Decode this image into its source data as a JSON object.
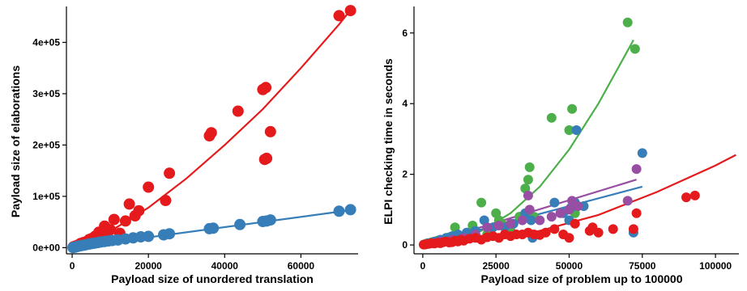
{
  "chart_data": [
    {
      "type": "scatter",
      "title": "",
      "xlabel": "Payload size of unordered translation",
      "ylabel": "Payload size of elaborations",
      "xlim": [
        -1500,
        75000
      ],
      "ylim": [
        -12000,
        470000
      ],
      "grid": false,
      "xticks": [
        0,
        20000,
        40000,
        60000
      ],
      "xtick_labels": [
        "0",
        "20000",
        "40000",
        "60000"
      ],
      "yticks": [
        0,
        100000,
        200000,
        300000,
        400000
      ],
      "ytick_labels": [
        "0e+00",
        "1e+05",
        "2e+05",
        "3e+05",
        "4e+05"
      ],
      "series": [
        {
          "color": "#e41a1c",
          "points": [
            [
              300,
              1500
            ],
            [
              800,
              3000
            ],
            [
              1500,
              5000
            ],
            [
              2200,
              8000
            ],
            [
              3000,
              10000
            ],
            [
              3800,
              12000
            ],
            [
              4500,
              16000
            ],
            [
              5200,
              18000
            ],
            [
              6000,
              22000
            ],
            [
              7000,
              30000
            ],
            [
              7800,
              25000
            ],
            [
              8500,
              42000
            ],
            [
              9200,
              20000
            ],
            [
              10000,
              35000
            ],
            [
              11000,
              55000
            ],
            [
              12500,
              28000
            ],
            [
              14000,
              52000
            ],
            [
              15000,
              85000
            ],
            [
              16500,
              62000
            ],
            [
              17500,
              72000
            ],
            [
              20000,
              118000
            ],
            [
              24500,
              92000
            ],
            [
              25500,
              145000
            ],
            [
              36000,
              218000
            ],
            [
              36500,
              224000
            ],
            [
              43500,
              266000
            ],
            [
              50000,
              308000
            ],
            [
              50800,
              312000
            ],
            [
              50500,
              172000
            ],
            [
              51000,
              174000
            ],
            [
              52000,
              226000
            ],
            [
              70000,
              452000
            ],
            [
              73000,
              462000
            ]
          ],
          "fit": [
            [
              0,
              0
            ],
            [
              10000,
              32000
            ],
            [
              20000,
              78000
            ],
            [
              30000,
              135000
            ],
            [
              40000,
              200000
            ],
            [
              50000,
              270000
            ],
            [
              60000,
              350000
            ],
            [
              70000,
              435000
            ],
            [
              73000,
              463000
            ]
          ]
        },
        {
          "color": "#377eb8",
          "points": [
            [
              200,
              300
            ],
            [
              600,
              800
            ],
            [
              1000,
              1500
            ],
            [
              1500,
              2500
            ],
            [
              2000,
              3500
            ],
            [
              2600,
              4200
            ],
            [
              3200,
              5000
            ],
            [
              3800,
              6000
            ],
            [
              4500,
              7000
            ],
            [
              5200,
              8000
            ],
            [
              6000,
              9000
            ],
            [
              6800,
              10000
            ],
            [
              7500,
              11000
            ],
            [
              8500,
              12000
            ],
            [
              9500,
              13000
            ],
            [
              10500,
              14000
            ],
            [
              12000,
              15000
            ],
            [
              14000,
              17000
            ],
            [
              16000,
              19000
            ],
            [
              18000,
              21000
            ],
            [
              20000,
              22000
            ],
            [
              24000,
              25000
            ],
            [
              25500,
              27000
            ],
            [
              36000,
              37000
            ],
            [
              37000,
              38000
            ],
            [
              44000,
              45000
            ],
            [
              50000,
              51000
            ],
            [
              51000,
              52000
            ],
            [
              52000,
              54000
            ],
            [
              70000,
              71000
            ],
            [
              73000,
              74000
            ]
          ],
          "fit": [
            [
              0,
              0
            ],
            [
              73000,
              73000
            ]
          ]
        }
      ]
    },
    {
      "type": "scatter",
      "title": "",
      "xlabel": "Payload size of problem up to 100000",
      "ylabel": "ELPI checking time in seconds",
      "xlim": [
        -3000,
        108000
      ],
      "ylim": [
        -0.25,
        6.75
      ],
      "grid": false,
      "xticks": [
        0,
        25000,
        50000,
        75000,
        100000
      ],
      "xtick_labels": [
        "0",
        "25000",
        "50000",
        "75000",
        "100000"
      ],
      "yticks": [
        0,
        2,
        4,
        6
      ],
      "ytick_labels": [
        "0",
        "2",
        "4",
        "6"
      ],
      "series": [
        {
          "color": "#4daf4a",
          "points": [
            [
              500,
              0.02
            ],
            [
              1500,
              0.05
            ],
            [
              3000,
              0.08
            ],
            [
              5000,
              0.12
            ],
            [
              7000,
              0.15
            ],
            [
              9000,
              0.22
            ],
            [
              11000,
              0.5
            ],
            [
              13000,
              0.25
            ],
            [
              15000,
              0.3
            ],
            [
              17000,
              0.55
            ],
            [
              20000,
              1.2
            ],
            [
              22000,
              0.3
            ],
            [
              25000,
              0.9
            ],
            [
              26000,
              0.7
            ],
            [
              27000,
              0.6
            ],
            [
              30000,
              0.4
            ],
            [
              33000,
              0.8
            ],
            [
              35000,
              1.6
            ],
            [
              36000,
              1.85
            ],
            [
              36500,
              2.2
            ],
            [
              38000,
              0.8
            ],
            [
              44000,
              3.6
            ],
            [
              50000,
              3.25
            ],
            [
              51000,
              3.85
            ],
            [
              52000,
              0.9
            ],
            [
              70000,
              6.3
            ],
            [
              72500,
              5.55
            ]
          ],
          "fit": [
            [
              0,
              0.0
            ],
            [
              10000,
              0.15
            ],
            [
              20000,
              0.4
            ],
            [
              30000,
              0.9
            ],
            [
              40000,
              1.65
            ],
            [
              50000,
              2.7
            ],
            [
              60000,
              4.0
            ],
            [
              72000,
              5.8
            ]
          ]
        },
        {
          "color": "#377eb8",
          "points": [
            [
              500,
              0.01
            ],
            [
              2000,
              0.05
            ],
            [
              4000,
              0.1
            ],
            [
              6000,
              0.15
            ],
            [
              8000,
              0.2
            ],
            [
              10000,
              0.25
            ],
            [
              12000,
              0.3
            ],
            [
              15000,
              0.35
            ],
            [
              18000,
              0.4
            ],
            [
              21000,
              0.7
            ],
            [
              24000,
              0.5
            ],
            [
              28000,
              0.5
            ],
            [
              31000,
              0.6
            ],
            [
              35000,
              0.9
            ],
            [
              37000,
              0.7
            ],
            [
              37500,
              0.2
            ],
            [
              45000,
              1.2
            ],
            [
              48000,
              0.9
            ],
            [
              50000,
              0.7
            ],
            [
              50500,
              1.05
            ],
            [
              52000,
              1.2
            ],
            [
              52500,
              3.25
            ],
            [
              55000,
              1.1
            ],
            [
              72000,
              0.35
            ],
            [
              75000,
              2.6
            ]
          ],
          "fit": [
            [
              0,
              0.0
            ],
            [
              75000,
              1.65
            ]
          ]
        },
        {
          "color": "#984ea3",
          "points": [
            [
              1000,
              0.02
            ],
            [
              3000,
              0.05
            ],
            [
              6000,
              0.1
            ],
            [
              10000,
              0.15
            ],
            [
              14000,
              0.2
            ],
            [
              18000,
              0.3
            ],
            [
              22000,
              0.5
            ],
            [
              26000,
              0.55
            ],
            [
              30000,
              0.6
            ],
            [
              34000,
              0.7
            ],
            [
              36000,
              1.4
            ],
            [
              36500,
              1.0
            ],
            [
              40000,
              0.7
            ],
            [
              44000,
              0.8
            ],
            [
              47000,
              0.9
            ],
            [
              50000,
              1.0
            ],
            [
              51000,
              1.25
            ],
            [
              53000,
              1.1
            ],
            [
              70000,
              1.25
            ],
            [
              73000,
              2.15
            ]
          ],
          "fit": [
            [
              0,
              0.0
            ],
            [
              73000,
              1.85
            ]
          ]
        },
        {
          "color": "#e41a1c",
          "points": [
            [
              300,
              0.01
            ],
            [
              1000,
              0.02
            ],
            [
              2000,
              0.03
            ],
            [
              3000,
              0.05
            ],
            [
              4000,
              0.04
            ],
            [
              5000,
              0.06
            ],
            [
              6000,
              0.05
            ],
            [
              7000,
              0.08
            ],
            [
              8000,
              0.1
            ],
            [
              9000,
              0.07
            ],
            [
              10000,
              0.08
            ],
            [
              11000,
              0.12
            ],
            [
              12000,
              0.1
            ],
            [
              13000,
              0.15
            ],
            [
              14000,
              0.12
            ],
            [
              16000,
              0.18
            ],
            [
              18000,
              0.2
            ],
            [
              20000,
              0.15
            ],
            [
              22000,
              0.22
            ],
            [
              24000,
              0.25
            ],
            [
              26000,
              0.2
            ],
            [
              28000,
              0.3
            ],
            [
              30000,
              0.25
            ],
            [
              32000,
              0.3
            ],
            [
              34000,
              0.3
            ],
            [
              36000,
              0.35
            ],
            [
              38000,
              0.3
            ],
            [
              40000,
              0.28
            ],
            [
              42000,
              0.35
            ],
            [
              45000,
              0.45
            ],
            [
              48000,
              0.3
            ],
            [
              50000,
              0.2
            ],
            [
              52000,
              0.6
            ],
            [
              57000,
              0.4
            ],
            [
              58000,
              0.5
            ],
            [
              60000,
              0.35
            ],
            [
              65000,
              0.45
            ],
            [
              72000,
              0.45
            ],
            [
              73000,
              0.9
            ],
            [
              90000,
              1.35
            ],
            [
              93000,
              1.4
            ]
          ],
          "fit": [
            [
              0,
              0.0
            ],
            [
              20000,
              0.12
            ],
            [
              40000,
              0.4
            ],
            [
              60000,
              0.85
            ],
            [
              80000,
              1.5
            ],
            [
              100000,
              2.25
            ],
            [
              107000,
              2.55
            ]
          ]
        }
      ]
    }
  ]
}
